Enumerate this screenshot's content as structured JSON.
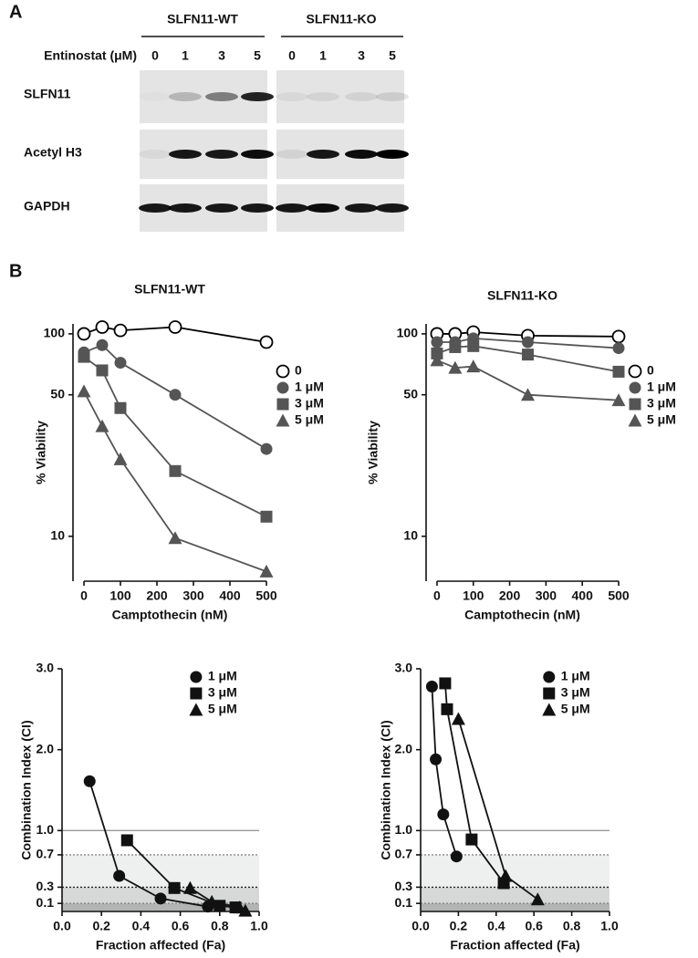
{
  "panel_a": {
    "label": "A",
    "groups": [
      "SLFN11-WT",
      "SLFN11-KO"
    ],
    "treatment_label": "Entinostat (μM)",
    "doses": [
      "0",
      "1",
      "3",
      "5"
    ],
    "rows": [
      "SLFN11",
      "Acetyl H3",
      "GAPDH"
    ]
  },
  "panel_b_label": "B",
  "chart_data": [
    {
      "type": "line",
      "title": "SLFN11-WT",
      "x_label": "Camptothecin (nM)",
      "y_label": "% Viability",
      "log_y": true,
      "legend": "right",
      "x": [
        0,
        50,
        100,
        250,
        500
      ],
      "xlim": [
        -30,
        500
      ],
      "xticks": [
        0,
        100,
        200,
        300,
        400,
        500
      ],
      "ylim": [
        6,
        112
      ],
      "yticks": [
        10,
        50,
        100
      ],
      "series": [
        {
          "name": "0",
          "marker": "open-circle",
          "color": "#000000",
          "values": [
            100,
            108,
            104,
            108,
            91
          ]
        },
        {
          "name": "1 μM",
          "marker": "circle",
          "color": "#555555",
          "values": [
            81,
            88,
            72,
            50,
            27
          ]
        },
        {
          "name": "3 μM",
          "marker": "square",
          "color": "#555555",
          "values": [
            77,
            66,
            43,
            21,
            12.5
          ]
        },
        {
          "name": "5 μM",
          "marker": "triangle",
          "color": "#555555",
          "values": [
            52,
            35,
            24,
            9.8,
            6.7
          ]
        }
      ]
    },
    {
      "type": "line",
      "title": "SLFN11-KO",
      "x_label": "Camptothecin (nM)",
      "y_label": "% Viability",
      "log_y": true,
      "legend": "right",
      "x": [
        0,
        50,
        100,
        250,
        500
      ],
      "xlim": [
        -30,
        500
      ],
      "xticks": [
        0,
        100,
        200,
        300,
        400,
        500
      ],
      "ylim": [
        6,
        112
      ],
      "yticks": [
        10,
        50,
        100
      ],
      "series": [
        {
          "name": "0",
          "marker": "open-circle",
          "color": "#000000",
          "values": [
            100,
            100,
            102,
            98,
            97
          ]
        },
        {
          "name": "1 μM",
          "marker": "circle",
          "color": "#555555",
          "values": [
            91,
            91,
            95,
            91,
            85
          ]
        },
        {
          "name": "3 μM",
          "marker": "square",
          "color": "#555555",
          "values": [
            80,
            86,
            87,
            79,
            65
          ]
        },
        {
          "name": "5 μM",
          "marker": "triangle",
          "color": "#555555",
          "values": [
            74,
            68,
            69,
            50,
            47
          ]
        }
      ]
    },
    {
      "type": "line",
      "x_label": "Fraction affected (Fa)",
      "y_label": "Combination Index (CI)",
      "log_y": false,
      "legend": "top-right",
      "xlim": [
        0,
        1
      ],
      "xticks": [
        {
          "value": 0,
          "label": "0.0"
        },
        0.2,
        0.4,
        0.6,
        0.8,
        {
          "value": 1,
          "label": "1.0"
        }
      ],
      "ylim": [
        0,
        3
      ],
      "yticks": [
        0.1,
        0.3,
        0.7,
        {
          "value": 1,
          "label": "1.0"
        },
        {
          "value": 2,
          "label": "2.0"
        },
        {
          "value": 3,
          "label": "3.0"
        }
      ],
      "regions": [
        {
          "from": 0.3,
          "to": 0.7,
          "color": "#eef0f0"
        },
        {
          "from": 0.1,
          "to": 0.3,
          "color": "#d6d8d8"
        },
        {
          "from": 0,
          "to": 0.1,
          "color": "#b2b4b4"
        }
      ],
      "hlines": [
        {
          "value": 1,
          "style": "solid"
        },
        {
          "value": 0.7,
          "style": "dotted"
        },
        {
          "value": 0.3,
          "style": "dotted"
        },
        {
          "value": 0.1,
          "style": "dotted"
        }
      ],
      "series": [
        {
          "name": "1 μM",
          "marker": "circle",
          "color": "#111111",
          "x": [
            0.14,
            0.29,
            0.5,
            0.74
          ],
          "values": [
            1.61,
            0.44,
            0.16,
            0.06
          ]
        },
        {
          "name": "3 μM",
          "marker": "square",
          "color": "#111111",
          "x": [
            0.33,
            0.57,
            0.8,
            0.88
          ],
          "values": [
            0.88,
            0.29,
            0.07,
            0.05
          ]
        },
        {
          "name": "5 μM",
          "marker": "triangle",
          "color": "#111111",
          "x": [
            0.65,
            0.76,
            0.9,
            0.93
          ],
          "values": [
            0.29,
            0.12,
            0.05,
            0.01
          ]
        }
      ]
    },
    {
      "type": "line",
      "x_label": "Fraction affected (Fa)",
      "y_label": "Combination Index (CI)",
      "log_y": false,
      "legend": "top-right",
      "xlim": [
        0,
        1
      ],
      "xticks": [
        {
          "value": 0,
          "label": "0.0"
        },
        0.2,
        0.4,
        0.6,
        0.8,
        {
          "value": 1,
          "label": "1.0"
        }
      ],
      "ylim": [
        0,
        3
      ],
      "yticks": [
        0.1,
        0.3,
        0.7,
        {
          "value": 1,
          "label": "1.0"
        },
        {
          "value": 2,
          "label": "2.0"
        },
        {
          "value": 3,
          "label": "3.0"
        }
      ],
      "regions": [
        {
          "from": 0.3,
          "to": 0.7,
          "color": "#eef0f0"
        },
        {
          "from": 0.1,
          "to": 0.3,
          "color": "#d6d8d8"
        },
        {
          "from": 0,
          "to": 0.1,
          "color": "#b2b4b4"
        }
      ],
      "hlines": [
        {
          "value": 1,
          "style": "solid"
        },
        {
          "value": 0.7,
          "style": "dotted"
        },
        {
          "value": 0.3,
          "style": "dotted"
        },
        {
          "value": 0.1,
          "style": "dotted"
        }
      ],
      "series": [
        {
          "name": "1 μM",
          "marker": "circle",
          "color": "#111111",
          "x": [
            0.06,
            0.08,
            0.12,
            0.19
          ],
          "values": [
            2.78,
            1.88,
            1.2,
            0.68
          ]
        },
        {
          "name": "3 μM",
          "marker": "square",
          "color": "#111111",
          "x": [
            0.13,
            0.14,
            0.27,
            0.44
          ],
          "values": [
            2.82,
            2.5,
            0.89,
            0.35
          ]
        },
        {
          "name": "5 μM",
          "marker": "triangle",
          "color": "#111111",
          "x": [
            0.2,
            0.45,
            0.62
          ],
          "values": [
            2.38,
            0.44,
            0.15
          ]
        }
      ]
    }
  ]
}
